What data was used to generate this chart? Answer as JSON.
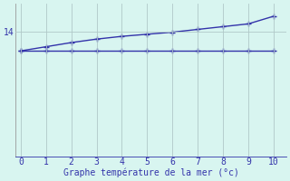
{
  "background_color": "#d8f5f0",
  "line_color": "#3333aa",
  "grid_color": "#b0c8c8",
  "xlabel": "Graphe température de la mer (°c)",
  "ytick_labels": [
    "14"
  ],
  "ytick_values": [
    14.0
  ],
  "x_flat_line": [
    0,
    1,
    2,
    3,
    4,
    5,
    6,
    7,
    8,
    9,
    10
  ],
  "y_flat_line": [
    13.72,
    13.72,
    13.72,
    13.72,
    13.72,
    13.72,
    13.72,
    13.72,
    13.72,
    13.72,
    13.72
  ],
  "x_rising_line": [
    0,
    1,
    2,
    3,
    4,
    5,
    6,
    7,
    8,
    9,
    10
  ],
  "y_rising_line": [
    13.72,
    13.78,
    13.84,
    13.89,
    13.93,
    13.96,
    13.99,
    14.03,
    14.07,
    14.11,
    14.22
  ],
  "xlim": [
    -0.2,
    10.5
  ],
  "ylim": [
    12.2,
    14.4
  ],
  "xtick_values": [
    0,
    1,
    2,
    3,
    4,
    5,
    6,
    7,
    8,
    9,
    10
  ],
  "marker": "+",
  "marker_size": 4,
  "line_width": 1.0,
  "font_size_tick": 7,
  "font_size_xlabel": 7
}
